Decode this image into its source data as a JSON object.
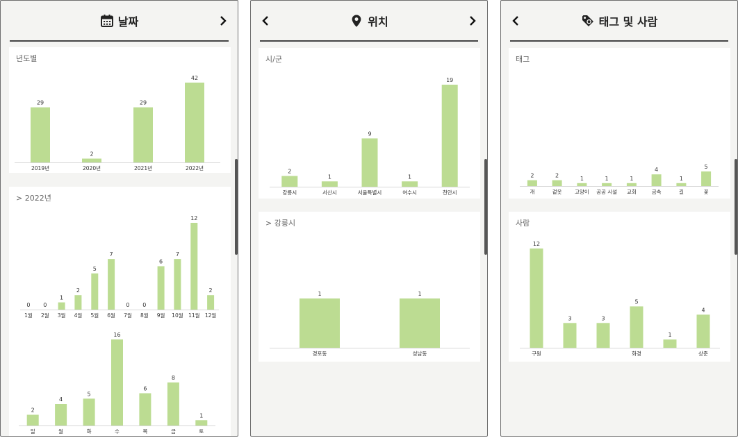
{
  "colors": {
    "bar": "#bcdc92",
    "axis": "#d7d7d7",
    "text": "#333333"
  },
  "panels": [
    {
      "title": "날짜",
      "icon": "calendar-icon",
      "nav": {
        "left": false,
        "right": true
      },
      "cards": [
        {
          "title": "년도별",
          "chart_data": {
            "type": "bar",
            "categories": [
              "2019년",
              "2020년",
              "2021년",
              "2022년"
            ],
            "values": [
              29,
              2,
              29,
              42
            ]
          }
        },
        {
          "title": ">  2022년",
          "chart_data": [
            {
              "type": "bar",
              "categories": [
                "1월",
                "2월",
                "3월",
                "4월",
                "5월",
                "6월",
                "7월",
                "8월",
                "9월",
                "10월",
                "11월",
                "12월"
              ],
              "values": [
                0,
                0,
                1,
                2,
                5,
                7,
                0,
                0,
                6,
                7,
                12,
                2
              ]
            },
            {
              "type": "bar",
              "categories": [
                "일",
                "월",
                "화",
                "수",
                "목",
                "금",
                "토"
              ],
              "values": [
                2,
                4,
                5,
                16,
                6,
                8,
                1
              ]
            }
          ]
        }
      ]
    },
    {
      "title": "위치",
      "icon": "location-pin-icon",
      "nav": {
        "left": true,
        "right": true
      },
      "cards": [
        {
          "title": "시/군",
          "chart_data": {
            "type": "bar",
            "categories": [
              "강릉시",
              "서산시",
              "서울특별시",
              "여수시",
              "천안시"
            ],
            "values": [
              2,
              1,
              9,
              1,
              19
            ]
          }
        },
        {
          "title": ">  강릉시",
          "chart_data": {
            "type": "bar",
            "categories": [
              "경포동",
              "성남동"
            ],
            "values": [
              1,
              1
            ]
          }
        }
      ]
    },
    {
      "title": "태그 및 사람",
      "icon": "tag-icon",
      "nav": {
        "left": true,
        "right": false
      },
      "cards": [
        {
          "title": "태그",
          "chart_data": {
            "type": "bar",
            "categories": [
              "개",
              "겉옷",
              "고양이",
              "공공 시설",
              "교회",
              "금속",
              "길",
              "꽃"
            ],
            "values": [
              2,
              2,
              1,
              1,
              1,
              4,
              1,
              5
            ]
          }
        },
        {
          "title": "사람",
          "chart_data": {
            "type": "bar",
            "categories": [
              "구원",
              "",
              "",
              "화경",
              "",
              "상준"
            ],
            "values": [
              12,
              3,
              3,
              5,
              1,
              4
            ]
          }
        }
      ]
    }
  ]
}
